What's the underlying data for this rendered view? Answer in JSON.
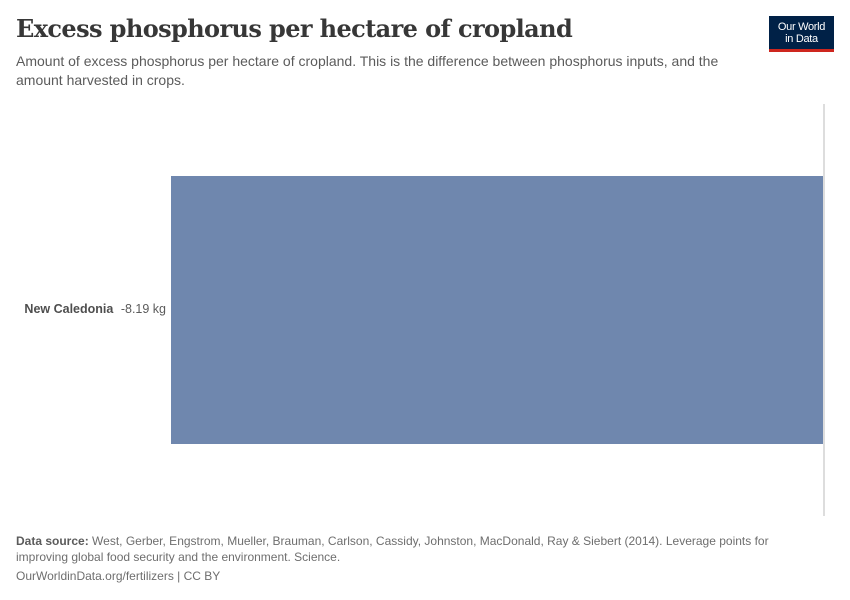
{
  "header": {
    "title": "Excess phosphorus per hectare of cropland",
    "subtitle": "Amount of excess phosphorus per hectare of cropland. This is the difference between phosphorus inputs, and the amount harvested in crops.",
    "logo": {
      "line1": "Our World",
      "line2": "in Data",
      "bg_color": "#002147",
      "accent_color": "#ce261e"
    }
  },
  "chart_data": {
    "type": "bar",
    "orientation": "horizontal",
    "title": "Excess phosphorus per hectare of cropland",
    "subtitle": "Amount of excess phosphorus per hectare of cropland. This is the difference between phosphorus inputs, and the amount harvested in crops.",
    "categories": [
      "New Caledonia"
    ],
    "values": [
      -8.19
    ],
    "unit": "kg",
    "value_labels": [
      "-8.19 kg"
    ],
    "bar_color": "#6f87ae",
    "xlabel": "",
    "ylabel": "",
    "grid": false,
    "legend": null
  },
  "rows": [
    {
      "entity": "New Caledonia",
      "value_label": "-8.19 kg"
    }
  ],
  "footer": {
    "source_label": "Data source:",
    "source_text": "West, Gerber, Engstrom, Mueller, Brauman, Carlson, Cassidy, Johnston, MacDonald, Ray & Siebert (2014). Leverage points for improving global food security and the environment. Science.",
    "url": "OurWorldinData.org/fertilizers",
    "separator": "|",
    "license": "CC BY"
  }
}
